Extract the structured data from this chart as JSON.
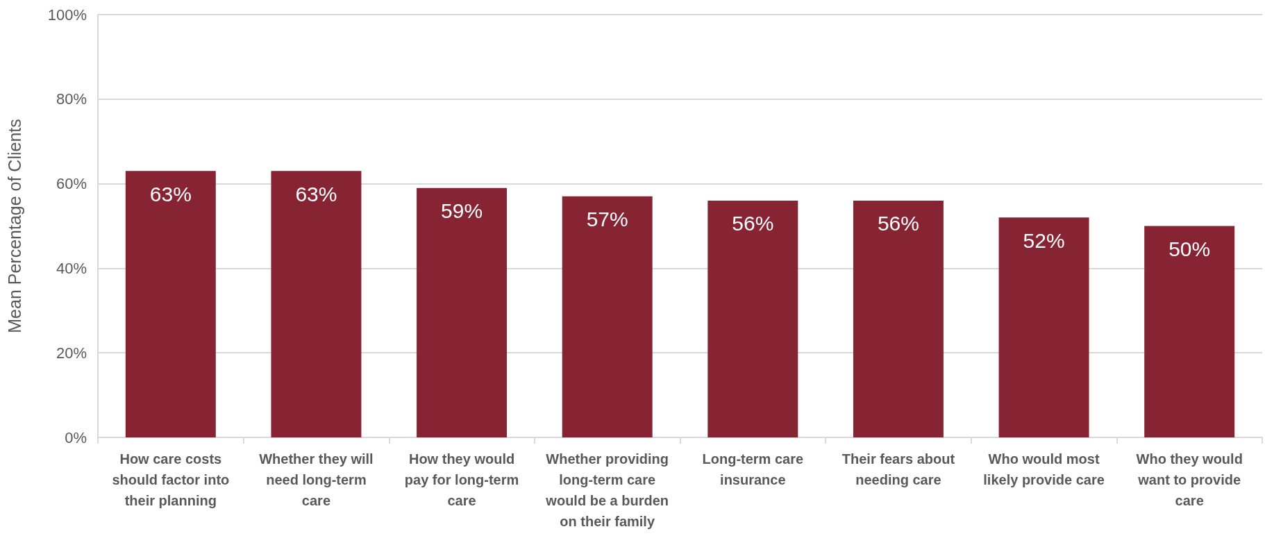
{
  "chart_data": {
    "type": "bar",
    "ylabel": "Mean Percentage of Clients",
    "categories": [
      "How care costs should factor into their planning",
      "Whether they will need long-term care",
      "How they would pay for long-term care",
      "Whether providing long-term care would be a burden on their family",
      "Long-term care insurance",
      "Their fears about needing care",
      "Who would most likely provide care",
      "Who they would want to provide care"
    ],
    "values": [
      63,
      63,
      59,
      57,
      56,
      56,
      52,
      50
    ],
    "value_labels": [
      "63%",
      "63%",
      "59%",
      "57%",
      "56%",
      "56%",
      "52%",
      "50%"
    ],
    "color": "#862433",
    "ylim": [
      0,
      100
    ],
    "yticks": [
      {
        "value": 0,
        "label": "0%"
      },
      {
        "value": 20,
        "label": "20%"
      },
      {
        "value": 40,
        "label": "40%"
      },
      {
        "value": 60,
        "label": "60%"
      },
      {
        "value": 80,
        "label": "80%"
      },
      {
        "value": 100,
        "label": "100%"
      }
    ],
    "grid": "y"
  }
}
